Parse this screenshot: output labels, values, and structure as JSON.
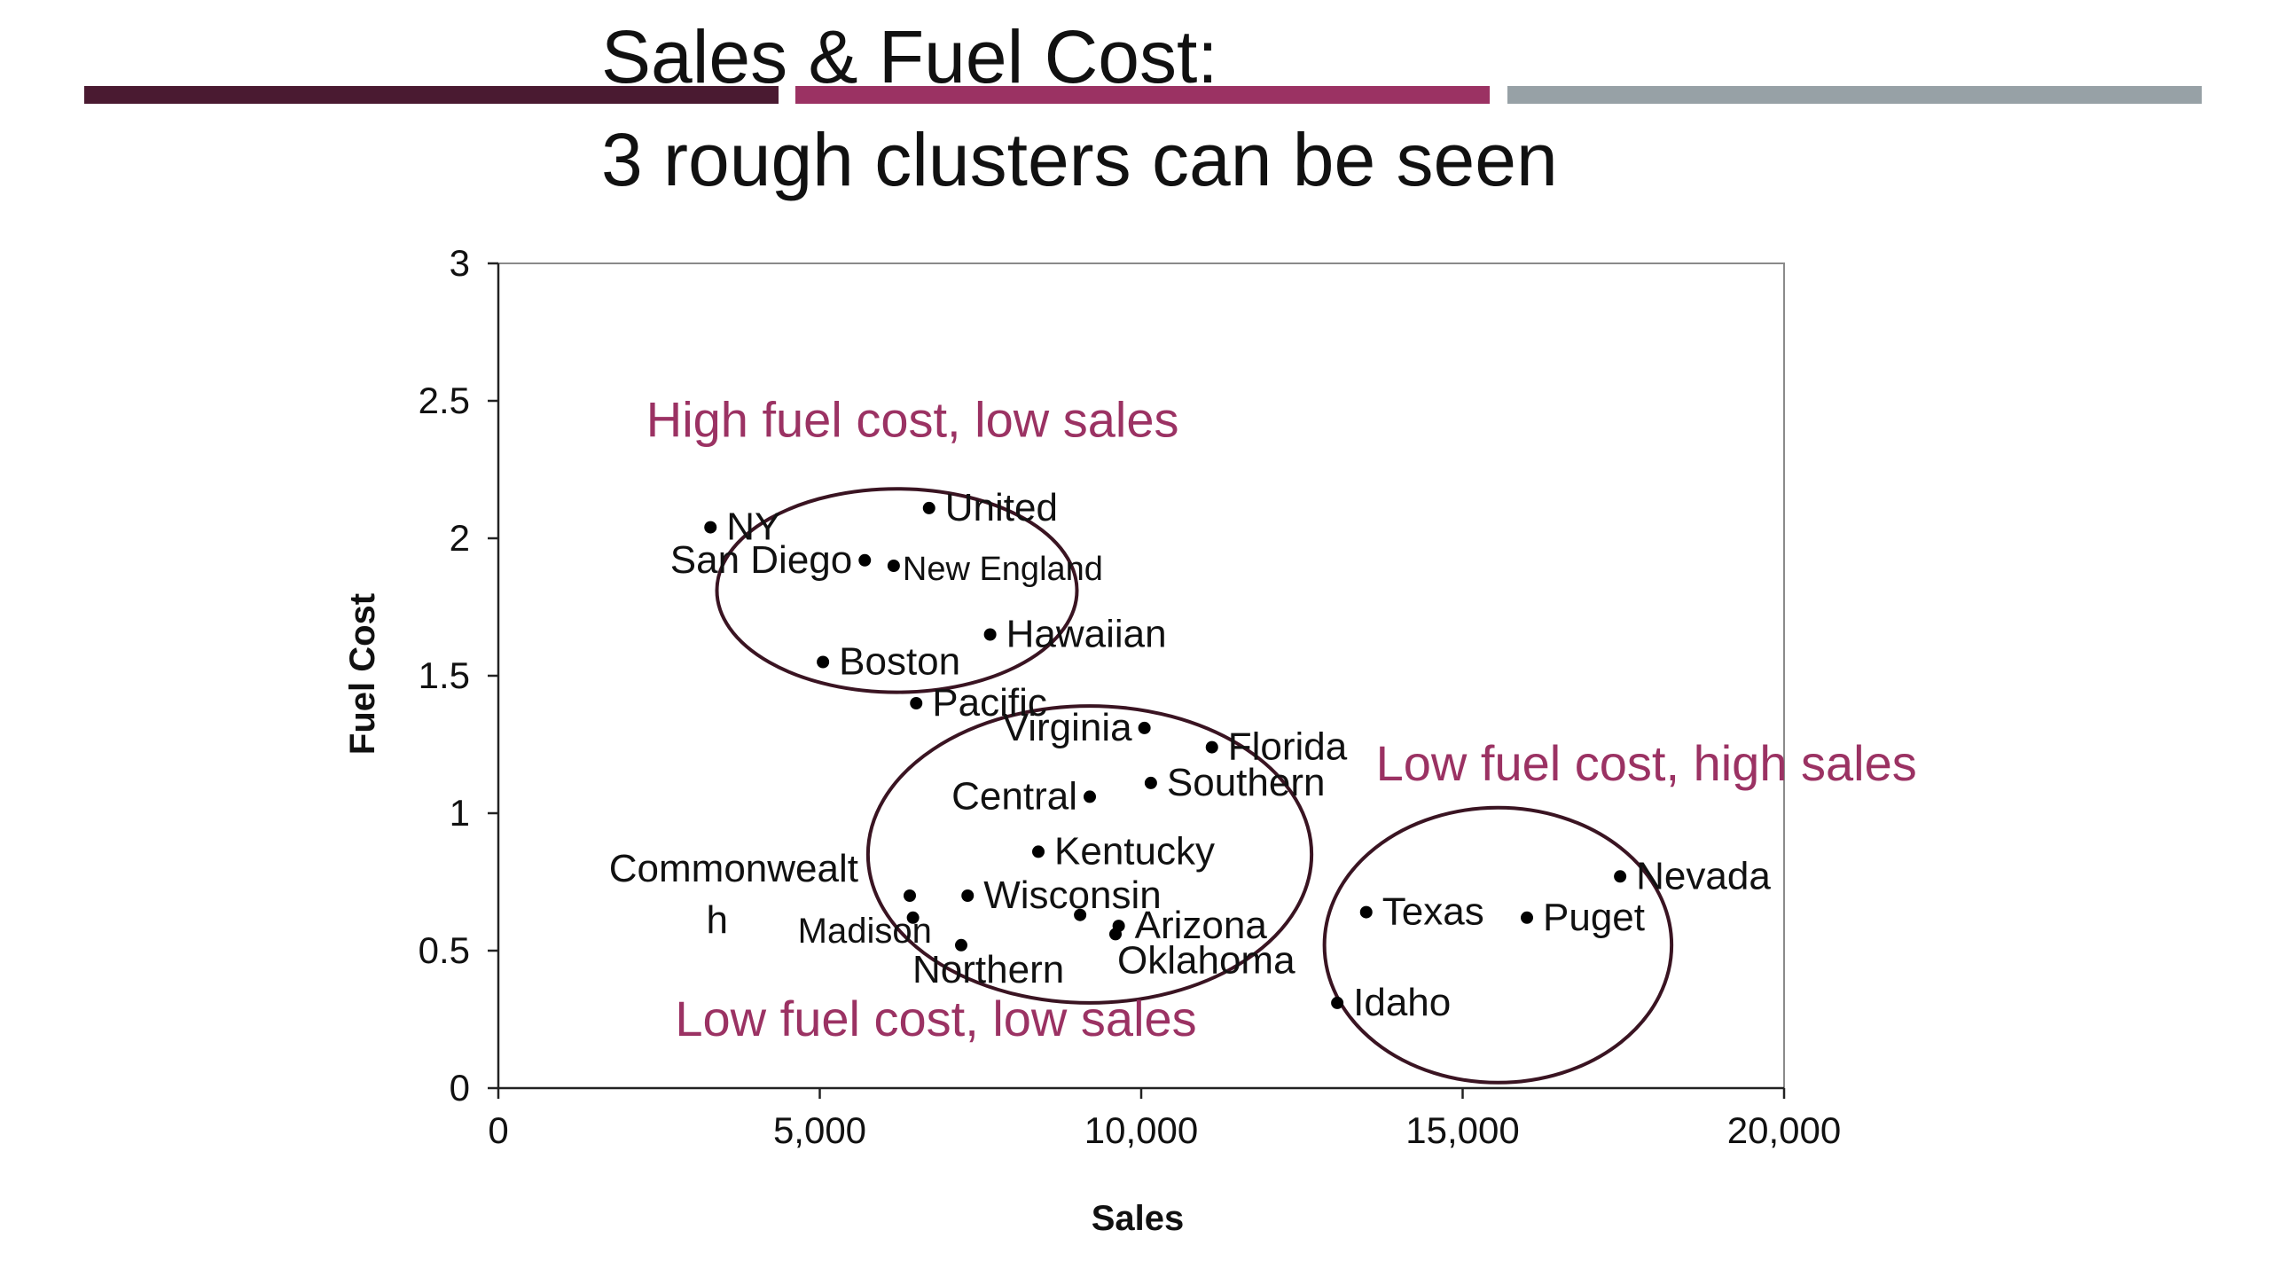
{
  "slide": {
    "title_line1": "Sales & Fuel Cost:",
    "title_line2": "3 rough clusters can be seen",
    "accent_colors": [
      "#4a1a31",
      "#9b3263",
      "#97a1a6"
    ]
  },
  "chart_data": {
    "type": "scatter",
    "xlabel": "Sales",
    "ylabel": "Fuel Cost",
    "xlim": [
      0,
      20000
    ],
    "ylim": [
      0,
      3
    ],
    "xticks": [
      {
        "value": 0,
        "label": "0"
      },
      {
        "value": 5000,
        "label": "5,000"
      },
      {
        "value": 10000,
        "label": "10,000"
      },
      {
        "value": 15000,
        "label": "15,000"
      },
      {
        "value": 20000,
        "label": "20,000"
      }
    ],
    "yticks": [
      {
        "value": 0,
        "label": "0"
      },
      {
        "value": 0.5,
        "label": "0.5"
      },
      {
        "value": 1,
        "label": "1"
      },
      {
        "value": 1.5,
        "label": "1.5"
      },
      {
        "value": 2,
        "label": "2"
      },
      {
        "value": 2.5,
        "label": "2.5"
      },
      {
        "value": 3,
        "label": "3"
      }
    ],
    "grid": false,
    "marker_color": "#000000",
    "annotation_color": "#9b3263",
    "points": [
      {
        "label": "NY",
        "x": 3300,
        "y": 2.04,
        "placement": "right"
      },
      {
        "label": "United",
        "x": 6700,
        "y": 2.11,
        "placement": "right"
      },
      {
        "label": "San Diego",
        "x": 5700,
        "y": 1.92,
        "placement": "left"
      },
      {
        "label": "New England",
        "x": 6150,
        "y": 1.9,
        "placement": "right-small"
      },
      {
        "label": "Hawaiian",
        "x": 7650,
        "y": 1.65,
        "placement": "right"
      },
      {
        "label": "Boston",
        "x": 5050,
        "y": 1.55,
        "placement": "right"
      },
      {
        "label": "Pacific",
        "x": 6500,
        "y": 1.4,
        "placement": "right"
      },
      {
        "label": "Virginia",
        "x": 10050,
        "y": 1.31,
        "placement": "left"
      },
      {
        "label": "Florida",
        "x": 11100,
        "y": 1.24,
        "placement": "right"
      },
      {
        "label": "Southern",
        "x": 10150,
        "y": 1.11,
        "placement": "right"
      },
      {
        "label": "Central",
        "x": 9200,
        "y": 1.06,
        "placement": "left"
      },
      {
        "label": "Kentucky",
        "x": 8400,
        "y": 0.86,
        "placement": "right"
      },
      {
        "label": "Commonwealth",
        "x": 6400,
        "y": 0.7,
        "placement": "split-left"
      },
      {
        "label": "Wisconsin",
        "x": 7300,
        "y": 0.7,
        "placement": "right"
      },
      {
        "label": "Madison",
        "x": 6450,
        "y": 0.62,
        "placement": "left-small"
      },
      {
        "label": "",
        "x": 9050,
        "y": 0.63,
        "placement": "none"
      },
      {
        "label": "Arizona",
        "x": 9650,
        "y": 0.59,
        "placement": "right"
      },
      {
        "label": "Northern",
        "x": 7200,
        "y": 0.52,
        "placement": "below"
      },
      {
        "label": "Oklahoma",
        "x": 9600,
        "y": 0.56,
        "placement": "below-right"
      },
      {
        "label": "Nevada",
        "x": 17450,
        "y": 0.77,
        "placement": "right"
      },
      {
        "label": "Texas",
        "x": 13500,
        "y": 0.64,
        "placement": "right"
      },
      {
        "label": "Puget",
        "x": 16000,
        "y": 0.62,
        "placement": "right"
      },
      {
        "label": "Idaho",
        "x": 13050,
        "y": 0.31,
        "placement": "right"
      }
    ],
    "annotations": [
      {
        "text": "High fuel cost, low sales",
        "x": 2300,
        "y": 2.37
      },
      {
        "text": "Low fuel cost, high sales",
        "x": 13650,
        "y": 1.12
      },
      {
        "text": "Low fuel cost, low sales",
        "x": 2750,
        "y": 0.19
      }
    ],
    "clusters": [
      {
        "cx": 6200,
        "cy": 1.81,
        "rx": 2800,
        "ry": 0.37
      },
      {
        "cx": 9200,
        "cy": 0.85,
        "rx": 3450,
        "ry": 0.54
      },
      {
        "cx": 15550,
        "cy": 0.52,
        "rx": 2700,
        "ry": 0.5
      }
    ]
  }
}
